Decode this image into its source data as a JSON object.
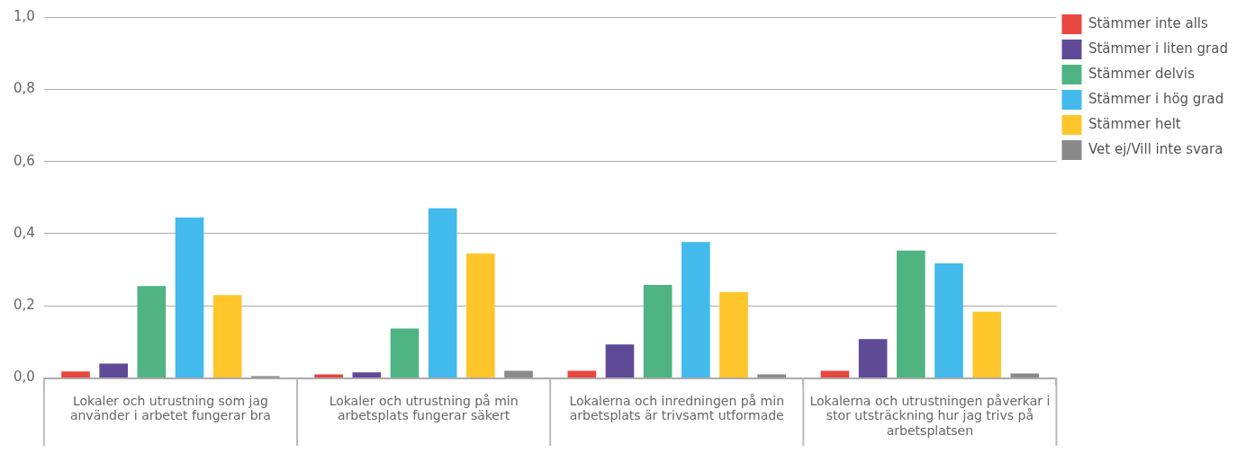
{
  "chart_data": {
    "type": "bar",
    "categories": [
      "Lokaler och utrustning som jag använder i arbetet fungerar bra",
      "Lokaler och utrustning på min arbetsplats fungerar säkert",
      "Lokalerna och inredningen på min arbetsplats är trivsamt utformade",
      "Lokalerna och utrustningen påverkar i stor utsträckning hur jag trivs på arbetsplatsen"
    ],
    "series": [
      {
        "name": "Stämmer inte alls",
        "color": "#e8473f",
        "values": [
          0.018,
          0.01,
          0.02,
          0.02
        ]
      },
      {
        "name": "Stämmer i liten grad",
        "color": "#5f4a98",
        "values": [
          0.04,
          0.016,
          0.093,
          0.108
        ]
      },
      {
        "name": "Stämmer delvis",
        "color": "#4fb482",
        "values": [
          0.255,
          0.137,
          0.258,
          0.353
        ]
      },
      {
        "name": "Stämmer i hög grad",
        "color": "#42baec",
        "values": [
          0.445,
          0.47,
          0.377,
          0.318
        ]
      },
      {
        "name": "Stämmer helt",
        "color": "#fec62b",
        "values": [
          0.23,
          0.345,
          0.238,
          0.184
        ]
      },
      {
        "name": "Vet ej/Vill inte svara",
        "color": "#8a8a8a",
        "values": [
          0.005,
          0.02,
          0.01,
          0.013
        ]
      }
    ],
    "ylim": [
      0,
      1
    ],
    "yticks": [
      {
        "value": 0,
        "label": "0,0"
      },
      {
        "value": 0.2,
        "label": "0,2"
      },
      {
        "value": 0.4,
        "label": "0,4"
      },
      {
        "value": 0.6,
        "label": "0,6"
      },
      {
        "value": 0.8,
        "label": "0,8"
      },
      {
        "value": 1,
        "label": "1,0"
      }
    ],
    "grid": "y",
    "legend": "top right"
  }
}
